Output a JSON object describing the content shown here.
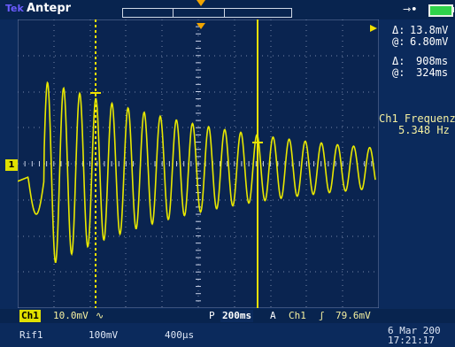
{
  "header": {
    "brand": "Tek",
    "mode": "Antepr"
  },
  "readouts": {
    "delta_voltage_label": "Δ:",
    "delta_voltage": "13.8mV",
    "at_voltage_label": "@:",
    "at_voltage": "6.80mV",
    "delta_time_label": "Δ:",
    "delta_time": "908ms",
    "at_time_label": "@:",
    "at_time": "324ms",
    "measure_title": "Ch1 Frequenz",
    "measure_value": "5.348 Hz"
  },
  "channel": {
    "marker": "1"
  },
  "footer": {
    "ch_label": "Ch1",
    "volts_div": "10.0mV",
    "coupling_icon": "∿",
    "p_label": "P",
    "timebase": "200ms",
    "trig_mode": "A",
    "trig_source": "Ch1",
    "trig_slope_icon": "ʃ",
    "trig_level": "79.6mV",
    "ref_label": "Rif1",
    "ref_volts": "100mV",
    "ref_time": "400µs",
    "date": "6 Mar 200",
    "time": "17:21:17"
  },
  "colors": {
    "screen": "#0b2a5c",
    "trace": "#e8e800",
    "grid": "#9aa7c4",
    "accent": "#f0a400"
  },
  "icons": {
    "battery": "battery-icon",
    "power": "power-plug-icon",
    "trigger_pos": "trigger-position-icon"
  }
}
